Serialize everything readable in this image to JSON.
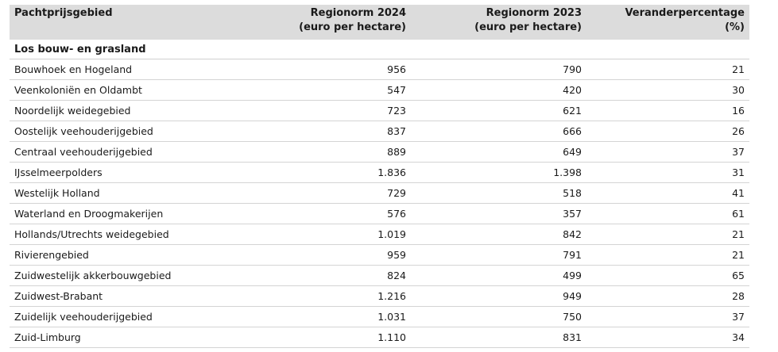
{
  "table": {
    "headers": [
      {
        "lines": [
          "Pachtprijsgebied"
        ],
        "align": "left"
      },
      {
        "lines": [
          "Regionorm 2024",
          "(euro per hectare)"
        ],
        "align": "right"
      },
      {
        "lines": [
          "Regionorm 2023",
          "(euro per hectare)"
        ],
        "align": "right"
      },
      {
        "lines": [
          "Veranderpercentage",
          "(%)"
        ],
        "align": "right"
      }
    ],
    "section_title": "Los bouw- en grasland",
    "rows": [
      [
        "Bouwhoek en Hogeland",
        "956",
        "790",
        "21"
      ],
      [
        "Veenkoloniën en Oldambt",
        "547",
        "420",
        "30"
      ],
      [
        "Noordelijk weidegebied",
        "723",
        "621",
        "16"
      ],
      [
        "Oostelijk veehouderijgebied",
        "837",
        "666",
        "26"
      ],
      [
        "Centraal veehouderijgebied",
        "889",
        "649",
        "37"
      ],
      [
        "IJsselmeerpolders",
        "1.836",
        "1.398",
        "31"
      ],
      [
        "Westelijk Holland",
        "729",
        "518",
        "41"
      ],
      [
        "Waterland en Droogmakerijen",
        "576",
        "357",
        "61"
      ],
      [
        "Hollands/Utrechts weidegebied",
        "1.019",
        "842",
        "21"
      ],
      [
        "Rivierengebied",
        "959",
        "791",
        "21"
      ],
      [
        "Zuidwestelijk akkerbouwgebied",
        "824",
        "499",
        "65"
      ],
      [
        "Zuidwest-Brabant",
        "1.216",
        "949",
        "28"
      ],
      [
        "Zuidelijk veehouderijgebied",
        "1.031",
        "750",
        "37"
      ],
      [
        "Zuid-Limburg",
        "1.110",
        "831",
        "34"
      ]
    ]
  }
}
